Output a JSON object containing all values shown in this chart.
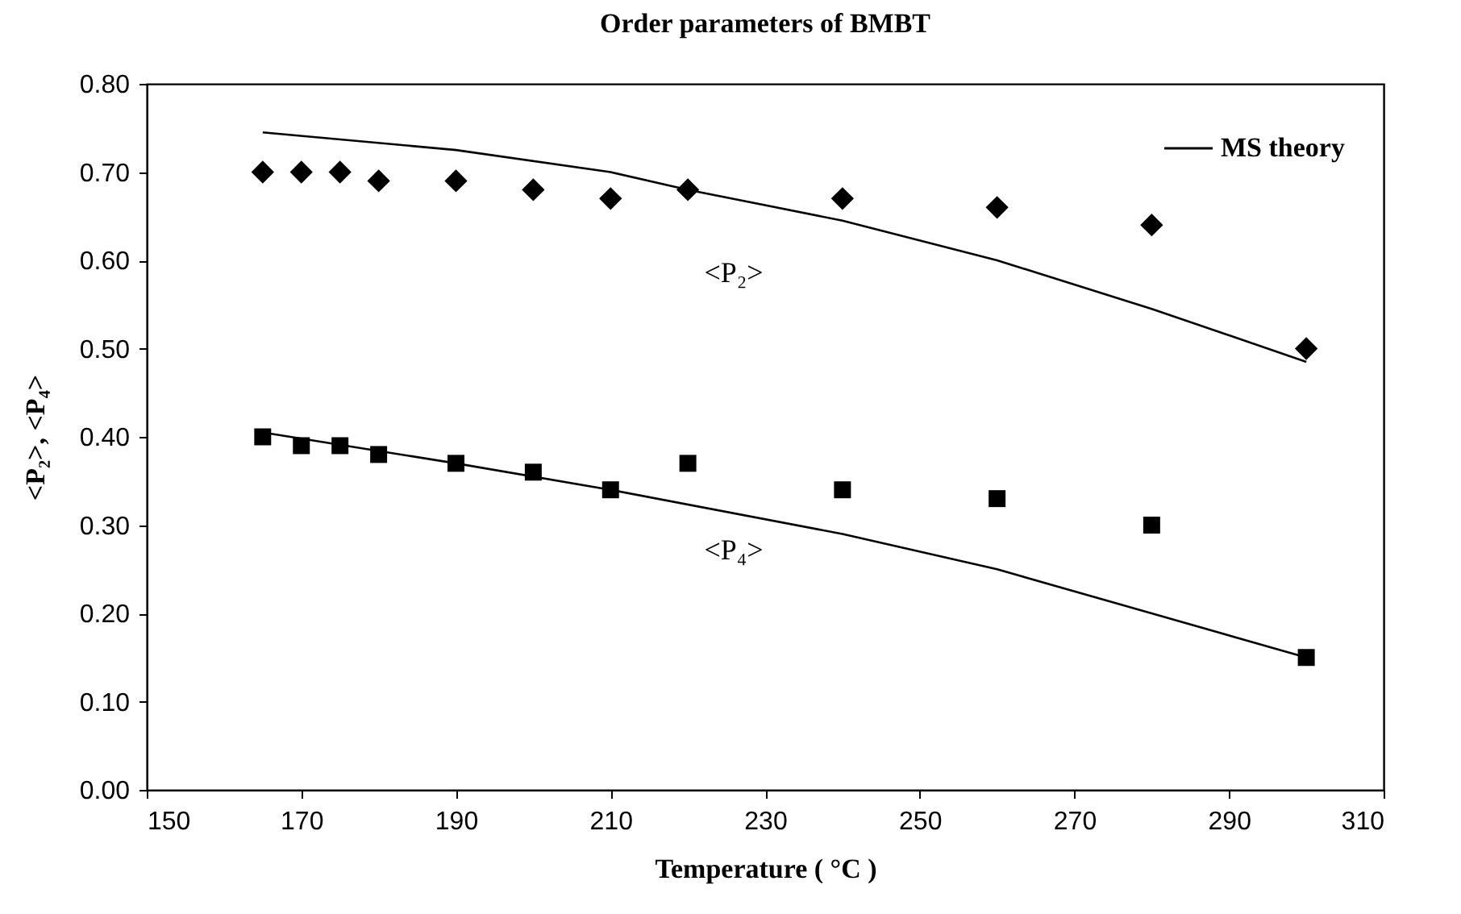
{
  "chart_data": {
    "type": "scatter",
    "title": "Order parameters of BMBT",
    "xlabel": "Temperature ( °C )",
    "ylabel": "<P₂>, <P₄>",
    "xlim": [
      150,
      310
    ],
    "xticks": [
      150,
      170,
      190,
      210,
      230,
      250,
      270,
      290,
      310
    ],
    "ylim": [
      0,
      0.8
    ],
    "yticks": [
      {
        "value": 0,
        "label": "0.00"
      },
      {
        "value": 0.1,
        "label": "0.10"
      },
      {
        "value": 0.2,
        "label": "0.20"
      },
      {
        "value": 0.3,
        "label": "0.30"
      },
      {
        "value": 0.4,
        "label": "0.40"
      },
      {
        "value": 0.5,
        "label": "0.50"
      },
      {
        "value": 0.6,
        "label": "0.60"
      },
      {
        "value": 0.7,
        "label": "0.70"
      },
      {
        "value": 0.8,
        "label": "0.80"
      }
    ],
    "grid": false,
    "legend": "top right",
    "series": [
      {
        "type": "line",
        "name": "MS theory",
        "color": "#000000",
        "marker": "none",
        "line_style": "solid",
        "x": [
          165,
          190,
          210,
          220,
          240,
          260,
          280,
          300
        ],
        "values": [
          0.745,
          0.725,
          0.7,
          0.68,
          0.645,
          0.6,
          0.545,
          0.485
        ]
      },
      {
        "type": "line",
        "color": "#000000",
        "marker": "none",
        "line_style": "solid",
        "x": [
          165,
          190,
          210,
          240,
          260,
          280,
          300
        ],
        "values": [
          0.405,
          0.37,
          0.34,
          0.29,
          0.25,
          0.2,
          0.15
        ]
      },
      {
        "type": "scatter",
        "color": "#000000",
        "marker": "diamond",
        "x": [
          165,
          170,
          175,
          180,
          190,
          200,
          210,
          220,
          240,
          260,
          280,
          300
        ],
        "values": [
          0.7,
          0.7,
          0.7,
          0.69,
          0.69,
          0.68,
          0.67,
          0.68,
          0.67,
          0.66,
          0.64,
          0.5
        ]
      },
      {
        "type": "scatter",
        "color": "#000000",
        "marker": "square",
        "x": [
          165,
          170,
          175,
          180,
          190,
          200,
          210,
          220,
          240,
          260,
          280,
          300
        ],
        "values": [
          0.4,
          0.39,
          0.39,
          0.38,
          0.37,
          0.36,
          0.34,
          0.37,
          0.34,
          0.33,
          0.3,
          0.15
        ]
      }
    ],
    "annotations": [
      "<P₂>",
      "<P₄>"
    ]
  }
}
